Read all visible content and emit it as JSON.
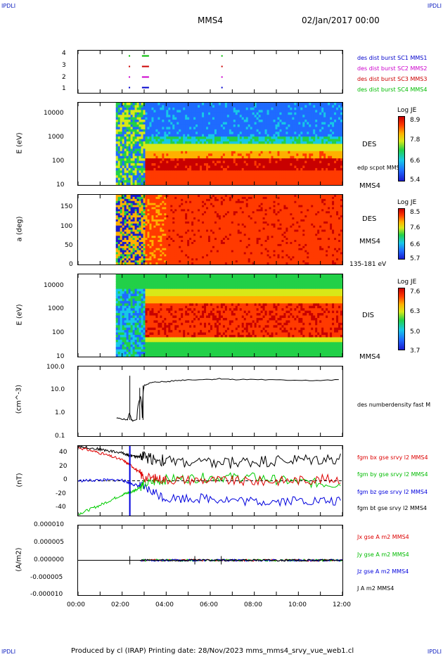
{
  "corners": {
    "tl": "IPDLI",
    "tr": "IPDLI",
    "bl": "IPDLI",
    "br": "IPDLI"
  },
  "header": {
    "spacecraft": "MMS4",
    "date": "02/Jan/2017 00:00"
  },
  "footer": {
    "text": "Produced by cl (IRAP)   Printing date: 28/Nov/2023   mms_mms4_srvy_vue_web1.cl"
  },
  "colors": {
    "mms1": "#0000cc",
    "mms2": "#cc00cc",
    "mms3": "#cc0000",
    "mms4": "#00bb00",
    "bx": "#dd0000",
    "by": "#00cc00",
    "bz": "#0000dd",
    "bt": "#000000"
  },
  "panel1": {
    "legend": [
      "des dist burst SC1 MMS1",
      "des dist burst SC2 MMS2",
      "des dist burst SC3 MMS3",
      "des dist burst SC4 MMS4"
    ],
    "yticks": [
      "4",
      "3",
      "2",
      "1"
    ]
  },
  "panel2": {
    "ylabel": "E (eV)",
    "yticks": [
      "10000",
      "1000",
      "100",
      "10"
    ],
    "instrument": "DES",
    "overlay": "edp scpot MMS4",
    "sc": "MMS4",
    "cbar": {
      "title": "Log JE",
      "ticks": [
        "8.9",
        "7.8",
        "6.6",
        "5.4"
      ]
    }
  },
  "panel3": {
    "ylabel": "a (deg)",
    "yticks": [
      "150",
      "100",
      "50",
      "0"
    ],
    "instrument": "DES",
    "sc": "MMS4",
    "energy": "135-181 eV",
    "cbar": {
      "title": "Log JE",
      "ticks": [
        "8.5",
        "7.6",
        "6.6",
        "5.7"
      ]
    }
  },
  "panel4": {
    "ylabel": "E (eV)",
    "yticks": [
      "10000",
      "1000",
      "100",
      "10"
    ],
    "instrument": "DIS",
    "sc": "MMS4",
    "cbar": {
      "title": "Log JE",
      "ticks": [
        "7.6",
        "6.3",
        "5.0",
        "3.7"
      ]
    }
  },
  "panel5": {
    "ylabel": "(cm^-3)",
    "yticks": [
      "100.0",
      "10.0",
      "1.0",
      "0.1"
    ],
    "legend": "des numberdensity fast M"
  },
  "panel6": {
    "ylabel": "(nT)",
    "yticks": [
      "40",
      "20",
      "0",
      "-20",
      "-40"
    ],
    "legend": [
      "fgm bx gse srvy l2 MMS4",
      "fgm by gse srvy l2 MMS4",
      "fgm bz gse srvy l2 MMS4",
      "fgm bt gse srvy l2 MMS4"
    ]
  },
  "panel7": {
    "ylabel": "(A/m2)",
    "yticks": [
      "0.000010",
      "0.000005",
      "0.000000",
      "-0.000005",
      "-0.000010"
    ],
    "legend": [
      "Jx gse A m2 MMS4",
      "Jy gse A m2 MMS4",
      "Jz gse A m2 MMS4",
      "J A m2 MMS4"
    ]
  },
  "xaxis": {
    "ticks": [
      "00:00",
      "02:00",
      "04:00",
      "06:00",
      "08:00",
      "10:00",
      "12:00"
    ]
  },
  "chart_data": [
    {
      "type": "scatter",
      "title": "",
      "ylabel": "",
      "ylim": [
        0.5,
        4.5
      ],
      "series": [
        {
          "name": "des dist burst SC1 MMS1",
          "values": [
            [
              2.3,
              1
            ],
            [
              2.9,
              1
            ],
            [
              6.5,
              1
            ]
          ]
        },
        {
          "name": "des dist burst SC2 MMS2",
          "values": [
            [
              2.3,
              2
            ],
            [
              2.9,
              2
            ],
            [
              6.5,
              2
            ]
          ]
        },
        {
          "name": "des dist burst SC3 MMS3",
          "values": [
            [
              2.3,
              3
            ],
            [
              2.9,
              3
            ],
            [
              6.5,
              3
            ]
          ]
        },
        {
          "name": "des dist burst SC4 MMS4",
          "values": [
            [
              2.3,
              4
            ],
            [
              2.9,
              4
            ],
            [
              6.5,
              4
            ]
          ]
        }
      ]
    },
    {
      "type": "heatmap",
      "ylabel": "E (eV)",
      "ylim": [
        10,
        30000
      ],
      "yscale": "log",
      "xlim": [
        "00:00",
        "12:00"
      ],
      "clim": [
        5.4,
        8.9
      ]
    },
    {
      "type": "heatmap",
      "ylabel": "a (deg)",
      "ylim": [
        0,
        180
      ],
      "xlim": [
        "00:00",
        "12:00"
      ],
      "clim": [
        5.7,
        8.5
      ]
    },
    {
      "type": "heatmap",
      "ylabel": "E (eV)",
      "ylim": [
        10,
        30000
      ],
      "yscale": "log",
      "xlim": [
        "00:00",
        "12:00"
      ],
      "clim": [
        3.7,
        7.6
      ]
    },
    {
      "type": "line",
      "ylabel": "(cm^-3)",
      "yscale": "log",
      "ylim": [
        0.1,
        100
      ],
      "series": [
        {
          "name": "des numberdensity fast M",
          "x": [
            "01:45",
            "02:00",
            "02:15",
            "02:20",
            "02:25",
            "02:30",
            "02:40",
            "02:50",
            "02:55",
            "03:00",
            "03:10",
            "03:20",
            "03:40",
            "04:00",
            "04:30",
            "05:00",
            "06:00",
            "06:30",
            "07:00",
            "08:00",
            "09:00",
            "10:00",
            "11:00",
            "12:00"
          ],
          "values": [
            0.6,
            0.55,
            0.5,
            1.0,
            0.5,
            0.45,
            0.5,
            5.0,
            0.6,
            15,
            18,
            20,
            22,
            22,
            25,
            27,
            28,
            30,
            27,
            28,
            26,
            26,
            25,
            27
          ]
        }
      ]
    },
    {
      "type": "line",
      "ylabel": "(nT)",
      "ylim": [
        -50,
        50
      ],
      "series": [
        {
          "name": "fgm bx gse srvy l2 MMS4",
          "x": [
            "00:00",
            "01:00",
            "02:00",
            "02:30",
            "03:00",
            "04:00",
            "06:00",
            "08:00",
            "10:00",
            "12:00"
          ],
          "values": [
            48,
            40,
            30,
            20,
            5,
            2,
            1,
            -1,
            1,
            3
          ]
        },
        {
          "name": "fgm by gse srvy l2 MMS4",
          "x": [
            "00:00",
            "01:00",
            "02:00",
            "02:30",
            "03:00",
            "04:00",
            "06:00",
            "08:00",
            "10:00",
            "12:00"
          ],
          "values": [
            -48,
            -35,
            -20,
            -15,
            -5,
            2,
            5,
            5,
            -2,
            -5
          ]
        },
        {
          "name": "fgm bz gse srvy l2 MMS4",
          "x": [
            "00:00",
            "01:00",
            "02:00",
            "02:30",
            "03:00",
            "04:00",
            "06:00",
            "08:00",
            "10:00",
            "12:00"
          ],
          "values": [
            0,
            1,
            1,
            -5,
            -10,
            -25,
            -25,
            -30,
            -28,
            -30
          ]
        },
        {
          "name": "fgm bt gse srvy l2 MMS4",
          "x": [
            "00:00",
            "01:00",
            "02:00",
            "02:30",
            "03:00",
            "04:00",
            "06:00",
            "08:00",
            "10:00",
            "12:00"
          ],
          "values": [
            50,
            45,
            40,
            35,
            35,
            28,
            25,
            28,
            30,
            32
          ]
        }
      ]
    },
    {
      "type": "line",
      "ylabel": "(A/m2)",
      "ylim": [
        -1e-05,
        1e-05
      ],
      "series": [
        {
          "name": "Jx gse A m2 MMS4",
          "x": [
            "00:00",
            "06:00",
            "12:00"
          ],
          "values": [
            0,
            0,
            0
          ]
        },
        {
          "name": "Jy gse A m2 MMS4",
          "x": [
            "00:00",
            "06:00",
            "12:00"
          ],
          "values": [
            0,
            0,
            0
          ]
        },
        {
          "name": "Jz gse A m2 MMS4",
          "x": [
            "00:00",
            "06:00",
            "12:00"
          ],
          "values": [
            0,
            0,
            0
          ]
        },
        {
          "name": "J A m2 MMS4",
          "x": [
            "00:00",
            "06:00",
            "12:00"
          ],
          "values": [
            0,
            0,
            0
          ]
        }
      ]
    }
  ]
}
